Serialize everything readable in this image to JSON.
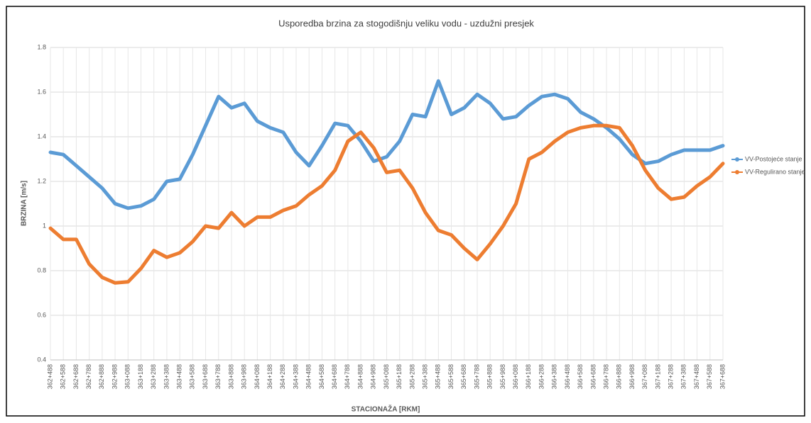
{
  "chart_data": {
    "type": "line",
    "title": "Usporedba brzina za stogodišnju veliku vodu - uzdužni presjek",
    "x_label": "STACIONAŽA [RKM]",
    "y_label": "BRZINA [m/s]",
    "categories": [
      "362+488",
      "362+588",
      "362+688",
      "362+788",
      "362+888",
      "362+988",
      "363+088",
      "363+188",
      "363+288",
      "363+388",
      "363+488",
      "363+588",
      "363+688",
      "363+788",
      "363+888",
      "363+988",
      "364+088",
      "364+188",
      "364+288",
      "364+388",
      "364+488",
      "364+588",
      "364+688",
      "364+788",
      "364+888",
      "364+988",
      "365+088",
      "365+188",
      "365+288",
      "365+388",
      "365+488",
      "365+588",
      "365+688",
      "365+788",
      "365+888",
      "365+988",
      "366+088",
      "366+188",
      "366+288",
      "366+388",
      "366+488",
      "366+588",
      "366+688",
      "366+788",
      "366+888",
      "366+988",
      "367+088",
      "367+188",
      "367+288",
      "367+388",
      "367+488",
      "367+588",
      "367+688"
    ],
    "series": [
      {
        "name": "VV-Postojeće stanje",
        "color": "#5b9bd5",
        "values": [
          1.33,
          1.32,
          1.27,
          1.22,
          1.17,
          1.1,
          1.08,
          1.09,
          1.12,
          1.2,
          1.21,
          1.32,
          1.45,
          1.58,
          1.53,
          1.55,
          1.47,
          1.44,
          1.42,
          1.33,
          1.27,
          1.36,
          1.46,
          1.45,
          1.38,
          1.29,
          1.31,
          1.38,
          1.5,
          1.49,
          1.65,
          1.5,
          1.53,
          1.59,
          1.55,
          1.48,
          1.49,
          1.54,
          1.58,
          1.59,
          1.57,
          1.51,
          1.48,
          1.44,
          1.39,
          1.32,
          1.28,
          1.29,
          1.32,
          1.34,
          1.34,
          1.34,
          1.36
        ]
      },
      {
        "name": "VV-Regulirano stanje",
        "color": "#ed7d31",
        "values": [
          0.99,
          0.94,
          0.94,
          0.83,
          0.77,
          0.745,
          0.75,
          0.81,
          0.89,
          0.86,
          0.88,
          0.93,
          1.0,
          0.99,
          1.06,
          1.0,
          1.04,
          1.04,
          1.07,
          1.09,
          1.14,
          1.18,
          1.25,
          1.38,
          1.42,
          1.35,
          1.24,
          1.25,
          1.17,
          1.06,
          0.98,
          0.96,
          0.9,
          0.85,
          0.92,
          1.0,
          1.1,
          1.3,
          1.33,
          1.38,
          1.42,
          1.44,
          1.45,
          1.45,
          1.44,
          1.36,
          1.25,
          1.17,
          1.12,
          1.13,
          1.18,
          1.22,
          1.28
        ]
      }
    ],
    "ylim": [
      0.4,
      1.8
    ],
    "yticks": [
      0.4,
      0.6,
      0.8,
      1,
      1.2,
      1.4,
      1.6,
      1.8
    ],
    "grid": true,
    "legend": "right"
  }
}
